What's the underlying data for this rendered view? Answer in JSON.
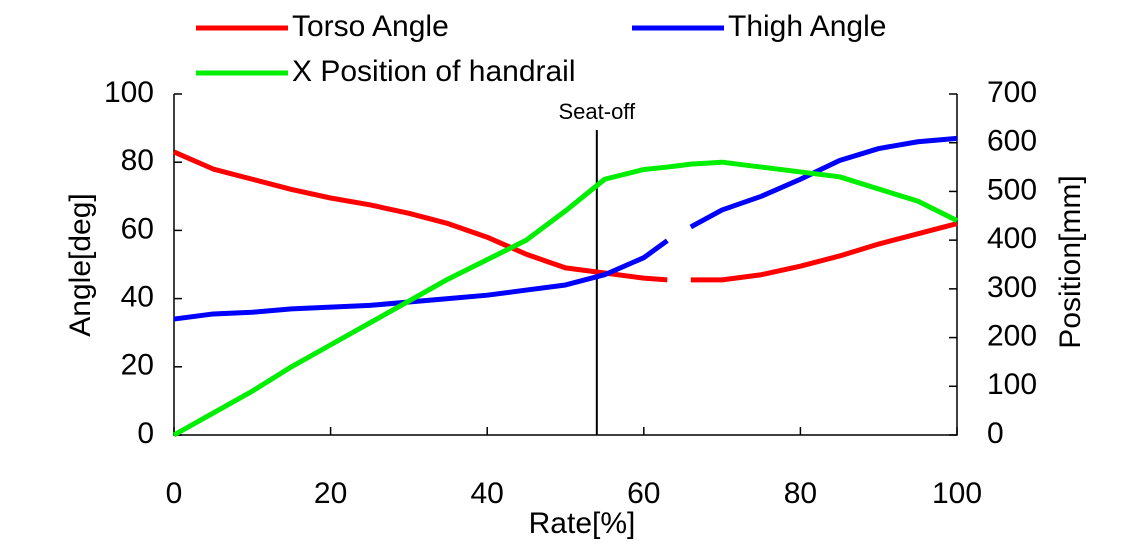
{
  "chart_data": {
    "type": "line",
    "xlabel": "Rate[%]",
    "ylabel": "Angle[deg]",
    "y2label": "Position[mm]",
    "annotation": {
      "text": "Seat-off",
      "x": 54
    },
    "x": [
      0,
      5,
      10,
      15,
      20,
      25,
      30,
      35,
      40,
      45,
      50,
      55,
      60,
      63,
      64,
      66,
      70,
      75,
      80,
      85,
      90,
      95,
      100
    ],
    "series": [
      {
        "name": "Torso Angle",
        "color": "#ff0000",
        "values": [
          83,
          78,
          75,
          72,
          69.5,
          67.5,
          65,
          62,
          58,
          53,
          49,
          47.5,
          46,
          45.5,
          null,
          45.5,
          45.5,
          47,
          49.5,
          52.5,
          56,
          59,
          62
        ]
      },
      {
        "name": "Thigh Angle",
        "color": "#0000ff",
        "values": [
          34,
          35.5,
          36,
          37,
          37.5,
          38,
          39,
          40,
          41,
          42.5,
          44,
          47,
          52,
          57,
          null,
          61,
          66,
          70,
          75,
          80.5,
          84,
          86,
          87
        ]
      },
      {
        "name": "X Position of handrail",
        "color": "#00ee00",
        "axis": "y2",
        "values": [
          0,
          45,
          90,
          140,
          185,
          230,
          275,
          320,
          360,
          400,
          460,
          525,
          545,
          550,
          552,
          556,
          560,
          550,
          540,
          530,
          505,
          480,
          440
        ]
      }
    ],
    "xlim": [
      0,
      100
    ],
    "xticks": [
      0,
      20,
      40,
      60,
      80,
      100
    ],
    "ylim": [
      0,
      100
    ],
    "yticks": [
      0,
      20,
      40,
      60,
      80,
      100
    ],
    "y2lim": [
      0,
      700
    ],
    "y2ticks": [
      0,
      100,
      200,
      300,
      400,
      500,
      600,
      700
    ]
  }
}
